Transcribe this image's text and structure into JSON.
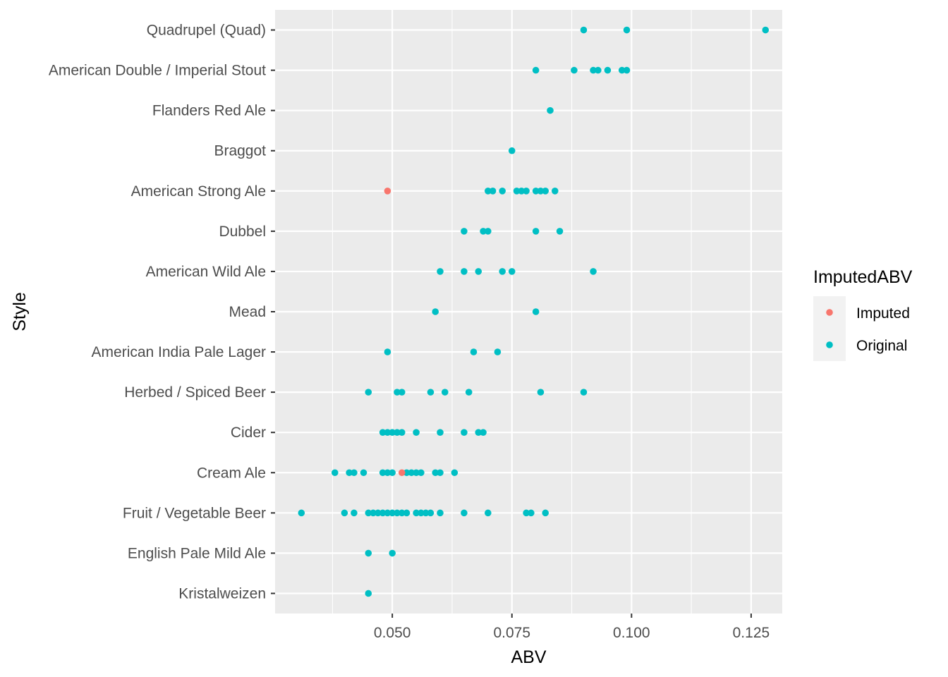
{
  "chart_data": {
    "type": "scatter",
    "title": "",
    "xlabel": "ABV",
    "ylabel": "Style",
    "xlim": [
      0.0255,
      0.1315
    ],
    "x_ticks": [
      0.05,
      0.075,
      0.1,
      0.125
    ],
    "x_tick_labels": [
      "0.050",
      "0.075",
      "0.100",
      "0.125"
    ],
    "categories": [
      "Kristalweizen",
      "English Pale Mild Ale",
      "Fruit / Vegetable Beer",
      "Cream Ale",
      "Cider",
      "Herbed / Spiced Beer",
      "American India Pale Lager",
      "Mead",
      "American Wild Ale",
      "Dubbel",
      "American Strong Ale",
      "Braggot",
      "Flanders Red Ale",
      "American Double / Imperial Stout",
      "Quadrupel (Quad)"
    ],
    "grid": true,
    "legend": {
      "title": "ImputedABV",
      "position": "right",
      "entries": [
        "Imputed",
        "Original"
      ]
    },
    "series": [
      {
        "name": "Imputed",
        "color": "#F8766D",
        "points": [
          {
            "style": "American Strong Ale",
            "abv": 0.049
          },
          {
            "style": "Cream Ale",
            "abv": 0.052
          }
        ]
      },
      {
        "name": "Original",
        "color": "#00BFC4",
        "points": [
          {
            "style": "Quadrupel (Quad)",
            "abv": 0.09
          },
          {
            "style": "Quadrupel (Quad)",
            "abv": 0.099
          },
          {
            "style": "Quadrupel (Quad)",
            "abv": 0.128
          },
          {
            "style": "American Double / Imperial Stout",
            "abv": 0.08
          },
          {
            "style": "American Double / Imperial Stout",
            "abv": 0.088
          },
          {
            "style": "American Double / Imperial Stout",
            "abv": 0.092
          },
          {
            "style": "American Double / Imperial Stout",
            "abv": 0.093
          },
          {
            "style": "American Double / Imperial Stout",
            "abv": 0.095
          },
          {
            "style": "American Double / Imperial Stout",
            "abv": 0.098
          },
          {
            "style": "American Double / Imperial Stout",
            "abv": 0.099
          },
          {
            "style": "Flanders Red Ale",
            "abv": 0.083
          },
          {
            "style": "Braggot",
            "abv": 0.075
          },
          {
            "style": "American Strong Ale",
            "abv": 0.07
          },
          {
            "style": "American Strong Ale",
            "abv": 0.071
          },
          {
            "style": "American Strong Ale",
            "abv": 0.073
          },
          {
            "style": "American Strong Ale",
            "abv": 0.076
          },
          {
            "style": "American Strong Ale",
            "abv": 0.077
          },
          {
            "style": "American Strong Ale",
            "abv": 0.078
          },
          {
            "style": "American Strong Ale",
            "abv": 0.08
          },
          {
            "style": "American Strong Ale",
            "abv": 0.081
          },
          {
            "style": "American Strong Ale",
            "abv": 0.082
          },
          {
            "style": "American Strong Ale",
            "abv": 0.084
          },
          {
            "style": "Dubbel",
            "abv": 0.065
          },
          {
            "style": "Dubbel",
            "abv": 0.069
          },
          {
            "style": "Dubbel",
            "abv": 0.07
          },
          {
            "style": "Dubbel",
            "abv": 0.08
          },
          {
            "style": "Dubbel",
            "abv": 0.085
          },
          {
            "style": "American Wild Ale",
            "abv": 0.06
          },
          {
            "style": "American Wild Ale",
            "abv": 0.065
          },
          {
            "style": "American Wild Ale",
            "abv": 0.068
          },
          {
            "style": "American Wild Ale",
            "abv": 0.073
          },
          {
            "style": "American Wild Ale",
            "abv": 0.075
          },
          {
            "style": "American Wild Ale",
            "abv": 0.092
          },
          {
            "style": "Mead",
            "abv": 0.059
          },
          {
            "style": "Mead",
            "abv": 0.08
          },
          {
            "style": "American India Pale Lager",
            "abv": 0.049
          },
          {
            "style": "American India Pale Lager",
            "abv": 0.067
          },
          {
            "style": "American India Pale Lager",
            "abv": 0.072
          },
          {
            "style": "Herbed / Spiced Beer",
            "abv": 0.045
          },
          {
            "style": "Herbed / Spiced Beer",
            "abv": 0.051
          },
          {
            "style": "Herbed / Spiced Beer",
            "abv": 0.052
          },
          {
            "style": "Herbed / Spiced Beer",
            "abv": 0.058
          },
          {
            "style": "Herbed / Spiced Beer",
            "abv": 0.061
          },
          {
            "style": "Herbed / Spiced Beer",
            "abv": 0.066
          },
          {
            "style": "Herbed / Spiced Beer",
            "abv": 0.081
          },
          {
            "style": "Herbed / Spiced Beer",
            "abv": 0.09
          },
          {
            "style": "Cider",
            "abv": 0.048
          },
          {
            "style": "Cider",
            "abv": 0.049
          },
          {
            "style": "Cider",
            "abv": 0.05
          },
          {
            "style": "Cider",
            "abv": 0.051
          },
          {
            "style": "Cider",
            "abv": 0.052
          },
          {
            "style": "Cider",
            "abv": 0.055
          },
          {
            "style": "Cider",
            "abv": 0.06
          },
          {
            "style": "Cider",
            "abv": 0.065
          },
          {
            "style": "Cider",
            "abv": 0.068
          },
          {
            "style": "Cider",
            "abv": 0.069
          },
          {
            "style": "Cream Ale",
            "abv": 0.038
          },
          {
            "style": "Cream Ale",
            "abv": 0.041
          },
          {
            "style": "Cream Ale",
            "abv": 0.042
          },
          {
            "style": "Cream Ale",
            "abv": 0.044
          },
          {
            "style": "Cream Ale",
            "abv": 0.048
          },
          {
            "style": "Cream Ale",
            "abv": 0.049
          },
          {
            "style": "Cream Ale",
            "abv": 0.05
          },
          {
            "style": "Cream Ale",
            "abv": 0.053
          },
          {
            "style": "Cream Ale",
            "abv": 0.054
          },
          {
            "style": "Cream Ale",
            "abv": 0.055
          },
          {
            "style": "Cream Ale",
            "abv": 0.056
          },
          {
            "style": "Cream Ale",
            "abv": 0.059
          },
          {
            "style": "Cream Ale",
            "abv": 0.06
          },
          {
            "style": "Cream Ale",
            "abv": 0.063
          },
          {
            "style": "Fruit / Vegetable Beer",
            "abv": 0.031
          },
          {
            "style": "Fruit / Vegetable Beer",
            "abv": 0.04
          },
          {
            "style": "Fruit / Vegetable Beer",
            "abv": 0.042
          },
          {
            "style": "Fruit / Vegetable Beer",
            "abv": 0.045
          },
          {
            "style": "Fruit / Vegetable Beer",
            "abv": 0.046
          },
          {
            "style": "Fruit / Vegetable Beer",
            "abv": 0.047
          },
          {
            "style": "Fruit / Vegetable Beer",
            "abv": 0.048
          },
          {
            "style": "Fruit / Vegetable Beer",
            "abv": 0.049
          },
          {
            "style": "Fruit / Vegetable Beer",
            "abv": 0.05
          },
          {
            "style": "Fruit / Vegetable Beer",
            "abv": 0.051
          },
          {
            "style": "Fruit / Vegetable Beer",
            "abv": 0.052
          },
          {
            "style": "Fruit / Vegetable Beer",
            "abv": 0.053
          },
          {
            "style": "Fruit / Vegetable Beer",
            "abv": 0.055
          },
          {
            "style": "Fruit / Vegetable Beer",
            "abv": 0.056
          },
          {
            "style": "Fruit / Vegetable Beer",
            "abv": 0.057
          },
          {
            "style": "Fruit / Vegetable Beer",
            "abv": 0.058
          },
          {
            "style": "Fruit / Vegetable Beer",
            "abv": 0.06
          },
          {
            "style": "Fruit / Vegetable Beer",
            "abv": 0.065
          },
          {
            "style": "Fruit / Vegetable Beer",
            "abv": 0.07
          },
          {
            "style": "Fruit / Vegetable Beer",
            "abv": 0.078
          },
          {
            "style": "Fruit / Vegetable Beer",
            "abv": 0.079
          },
          {
            "style": "Fruit / Vegetable Beer",
            "abv": 0.082
          },
          {
            "style": "English Pale Mild Ale",
            "abv": 0.045
          },
          {
            "style": "English Pale Mild Ale",
            "abv": 0.05
          },
          {
            "style": "Kristalweizen",
            "abv": 0.045
          }
        ]
      }
    ]
  }
}
